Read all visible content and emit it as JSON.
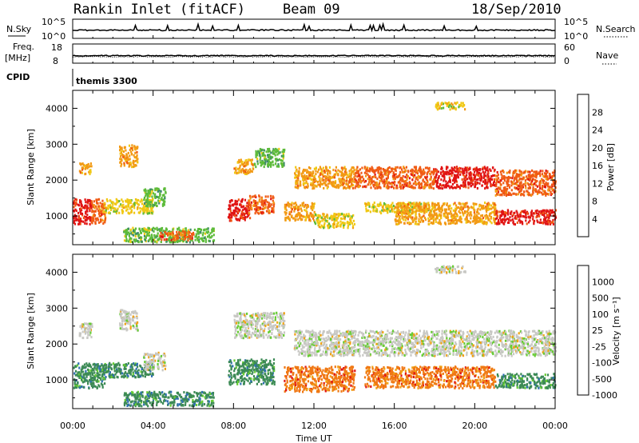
{
  "header": {
    "title": "Rankin Inlet (fitACF)",
    "beam": "Beam 09",
    "date": "18/Sep/2010"
  },
  "status_panels": {
    "nsky_label": "N.Sky",
    "nsky_ticks": [
      "10^5",
      "10^0"
    ],
    "nsearch_label": "N.Search",
    "nsearch_ticks": [
      "10^5",
      "10^0"
    ],
    "freq_label_1": "Freq.",
    "freq_label_2": "[MHz]",
    "freq_ticks": [
      "18",
      "8"
    ],
    "nave_label": "Nave",
    "nave_ticks": [
      "60",
      "0"
    ],
    "cpid_label": "CPID",
    "cpid_value": "themis 3300"
  },
  "axes": {
    "ylabel": "Slant Range [km]",
    "xlabel": "Time UT",
    "yticks": [
      "4000",
      "3000",
      "2000",
      "1000"
    ],
    "xticks": [
      "00:00",
      "04:00",
      "08:00",
      "12:00",
      "16:00",
      "20:00",
      "00:00"
    ]
  },
  "colors": {
    "power_scale": [
      "#1010f0",
      "#3a55b0",
      "#3f8a6a",
      "#5dbb3a",
      "#f0c814",
      "#f29a14",
      "#f05a14",
      "#e01414"
    ],
    "velocity_scale": [
      "#1a2fb0",
      "#2f70b0",
      "#3c8a55",
      "#66cc33",
      "#c8c8c4",
      "#f0a214",
      "#f07814",
      "#e01414"
    ]
  },
  "chart_data": [
    {
      "type": "heatmap",
      "name": "Power",
      "colorbar_label": "Power [dB]",
      "colorbar_ticks": [
        "28",
        "24",
        "20",
        "16",
        "12",
        "8",
        "4"
      ],
      "xlabel": "",
      "ylabel": "Slant Range [km]",
      "xlim": [
        "00:00",
        "24:00"
      ],
      "ylim": [
        200,
        4500
      ],
      "blobs": [
        {
          "t": [
            0.0,
            0.9
          ],
          "r": [
            800,
            1500
          ],
          "c": 7
        },
        {
          "t": [
            0.9,
            1.6
          ],
          "r": [
            800,
            1500
          ],
          "c": 6
        },
        {
          "t": [
            0.3,
            0.9
          ],
          "r": [
            2200,
            2500
          ],
          "c": 5
        },
        {
          "t": [
            2.3,
            3.2
          ],
          "r": [
            2400,
            3000
          ],
          "c": 5
        },
        {
          "t": [
            1.5,
            4.0
          ],
          "r": [
            1100,
            1500
          ],
          "c": 4
        },
        {
          "t": [
            3.5,
            4.6
          ],
          "r": [
            1300,
            1800
          ],
          "c": 3
        },
        {
          "t": [
            2.5,
            7.0
          ],
          "r": [
            300,
            700
          ],
          "c": 3
        },
        {
          "t": [
            4.3,
            6.0
          ],
          "r": [
            350,
            600
          ],
          "c": 6
        },
        {
          "t": [
            7.7,
            8.8
          ],
          "r": [
            900,
            1500
          ],
          "c": 7
        },
        {
          "t": [
            8.7,
            10.0
          ],
          "r": [
            1100,
            1600
          ],
          "c": 6
        },
        {
          "t": [
            8.0,
            9.0
          ],
          "r": [
            2200,
            2600
          ],
          "c": 5
        },
        {
          "t": [
            9.0,
            10.5
          ],
          "r": [
            2400,
            2900
          ],
          "c": 3
        },
        {
          "t": [
            10.5,
            12.0
          ],
          "r": [
            900,
            1400
          ],
          "c": 5
        },
        {
          "t": [
            12.0,
            14.0
          ],
          "r": [
            700,
            1100
          ],
          "c": 4
        },
        {
          "t": [
            11.0,
            14.0
          ],
          "r": [
            1800,
            2400
          ],
          "c": 5
        },
        {
          "t": [
            14.0,
            18.0
          ],
          "r": [
            1800,
            2400
          ],
          "c": 6
        },
        {
          "t": [
            18.0,
            21.0
          ],
          "r": [
            1800,
            2400
          ],
          "c": 7
        },
        {
          "t": [
            21.0,
            24.0
          ],
          "r": [
            1600,
            2300
          ],
          "c": 6
        },
        {
          "t": [
            14.5,
            18.0
          ],
          "r": [
            1100,
            1400
          ],
          "c": 4
        },
        {
          "t": [
            16.0,
            21.0
          ],
          "r": [
            800,
            1400
          ],
          "c": 5
        },
        {
          "t": [
            21.0,
            24.0
          ],
          "r": [
            800,
            1200
          ],
          "c": 7
        },
        {
          "t": [
            18.0,
            19.5
          ],
          "r": [
            4000,
            4200
          ],
          "c": 4
        }
      ]
    },
    {
      "type": "heatmap",
      "name": "Velocity",
      "colorbar_label": "Velocity [m s⁻¹]",
      "colorbar_ticks": [
        "1000",
        "500",
        "100",
        "25",
        "-25",
        "-100",
        "-500",
        "-1000"
      ],
      "xlabel": "Time UT",
      "ylabel": "Slant Range [km]",
      "xlim": [
        "00:00",
        "24:00"
      ],
      "ylim": [
        200,
        4500
      ],
      "blobs": [
        {
          "t": [
            0.0,
            1.6
          ],
          "r": [
            800,
            1500
          ],
          "c": 2
        },
        {
          "t": [
            0.3,
            1.0
          ],
          "r": [
            2200,
            2600
          ],
          "c": 4
        },
        {
          "t": [
            2.3,
            3.2
          ],
          "r": [
            2400,
            3000
          ],
          "c": 4
        },
        {
          "t": [
            1.5,
            4.0
          ],
          "r": [
            1100,
            1500
          ],
          "c": 2
        },
        {
          "t": [
            3.5,
            4.6
          ],
          "r": [
            1300,
            1800
          ],
          "c": 4
        },
        {
          "t": [
            2.5,
            7.0
          ],
          "r": [
            300,
            700
          ],
          "c": 2
        },
        {
          "t": [
            7.7,
            10.0
          ],
          "r": [
            900,
            1600
          ],
          "c": 2
        },
        {
          "t": [
            8.0,
            10.5
          ],
          "r": [
            2200,
            2900
          ],
          "c": 4
        },
        {
          "t": [
            10.5,
            14.0
          ],
          "r": [
            700,
            1400
          ],
          "c": 6
        },
        {
          "t": [
            11.0,
            24.0
          ],
          "r": [
            1700,
            2400
          ],
          "c": 4
        },
        {
          "t": [
            14.5,
            21.0
          ],
          "r": [
            800,
            1400
          ],
          "c": 6
        },
        {
          "t": [
            21.0,
            24.0
          ],
          "r": [
            800,
            1200
          ],
          "c": 2
        },
        {
          "t": [
            18.0,
            19.5
          ],
          "r": [
            4000,
            4200
          ],
          "c": 4
        }
      ]
    }
  ]
}
